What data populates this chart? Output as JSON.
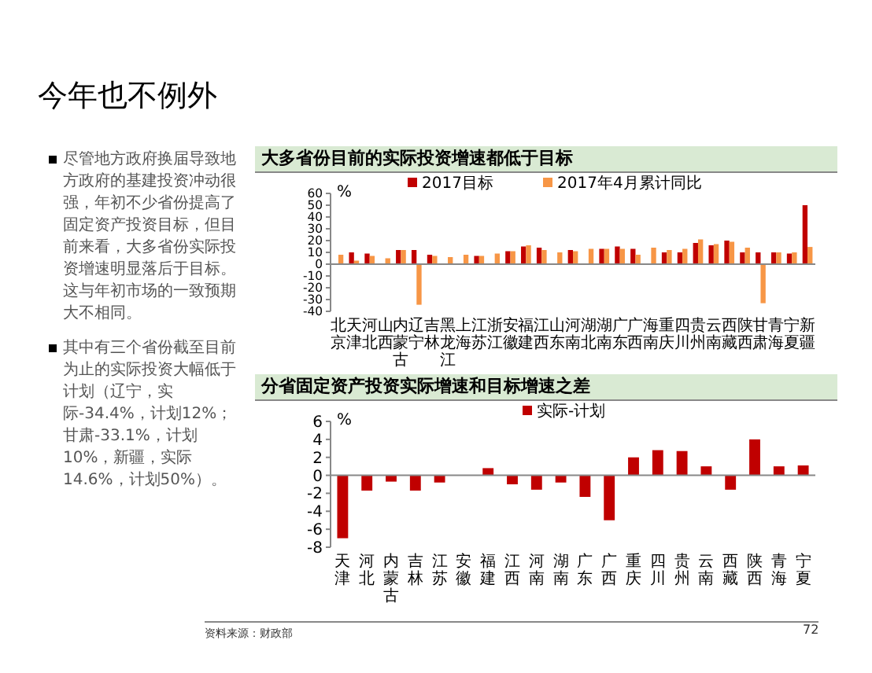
{
  "chart_data": [
    {
      "type": "other",
      "title": "今年也不例外",
      "annotations": [
        "尽管地方政府换届导致地方政府的基建投资冲动很强，年初不少省份提高了固定资产投资目标，但目前来看，大多省份实际投资增速明显落后于目标。这与年初市场的一致预期大不相同。",
        "其中有三个省份截至目前为止的实际投资大幅低于计划（辽宁，实际-34.4%，计划12%；甘肃-33.1%，计划10%，新疆，实际14.6%，计划50%）。"
      ]
    },
    {
      "type": "bar",
      "title": "大多省份目前的实际投资增速都低于目标",
      "ylabel": "%",
      "legend": "top",
      "ylim": [
        -40,
        60
      ],
      "yticks": [
        -40,
        -30,
        -20,
        -10,
        0,
        10,
        20,
        30,
        40,
        50,
        60
      ],
      "categories": [
        "北京",
        "天津",
        "河北",
        "山西",
        "内蒙古",
        "辽宁",
        "吉林",
        "黑龙江",
        "上海",
        "江苏",
        "浙江",
        "安徽",
        "福建",
        "江西",
        "山东",
        "河南",
        "湖北",
        "湖南",
        "广东",
        "广西",
        "海南",
        "重庆",
        "四川",
        "贵州",
        "云南",
        "西藏",
        "陕西",
        "甘肃",
        "青海",
        "宁夏",
        "新疆"
      ],
      "series": [
        {
          "name": "2017目标",
          "color": "#c00000",
          "values": [
            null,
            10,
            9,
            null,
            12,
            12,
            8,
            null,
            null,
            7,
            null,
            11,
            15,
            14,
            null,
            12,
            null,
            13,
            15,
            13,
            null,
            10,
            10,
            18,
            16,
            20,
            10,
            10,
            10,
            9,
            50
          ]
        },
        {
          "name": "2017年4月累计同比",
          "color": "#f79646",
          "values": [
            8,
            3,
            7,
            5,
            12,
            -34.4,
            7,
            6,
            8,
            7,
            9,
            11,
            16,
            12,
            10,
            11,
            13,
            13,
            13,
            8,
            14,
            12,
            13,
            21,
            17,
            19,
            14,
            -33.1,
            10,
            10,
            14.6
          ]
        }
      ]
    },
    {
      "type": "bar",
      "title": "分省固定资产投资实际增速和目标增速之差",
      "ylabel": "%",
      "legend": "top",
      "ylim": [
        -8,
        6
      ],
      "yticks": [
        -8,
        -6,
        -4,
        -2,
        0,
        2,
        4,
        6
      ],
      "categories": [
        "天津",
        "河北",
        "内蒙古",
        "吉林",
        "江苏",
        "安徽",
        "福建",
        "江西",
        "河南",
        "湖南",
        "广东",
        "广西",
        "重庆",
        "四川",
        "贵州",
        "云南",
        "西藏",
        "陕西",
        "青海",
        "宁夏"
      ],
      "series": [
        {
          "name": "实际-计划",
          "color": "#c00000",
          "values": [
            -7,
            -1.7,
            -0.7,
            -1.7,
            -0.8,
            0,
            0.8,
            -1,
            -1.6,
            -0.8,
            -2.4,
            -5,
            2,
            2.8,
            2.7,
            1,
            -1.6,
            4,
            1,
            1.1
          ]
        }
      ],
      "annotations": [
        "资料来源：财政部",
        "72"
      ]
    }
  ]
}
